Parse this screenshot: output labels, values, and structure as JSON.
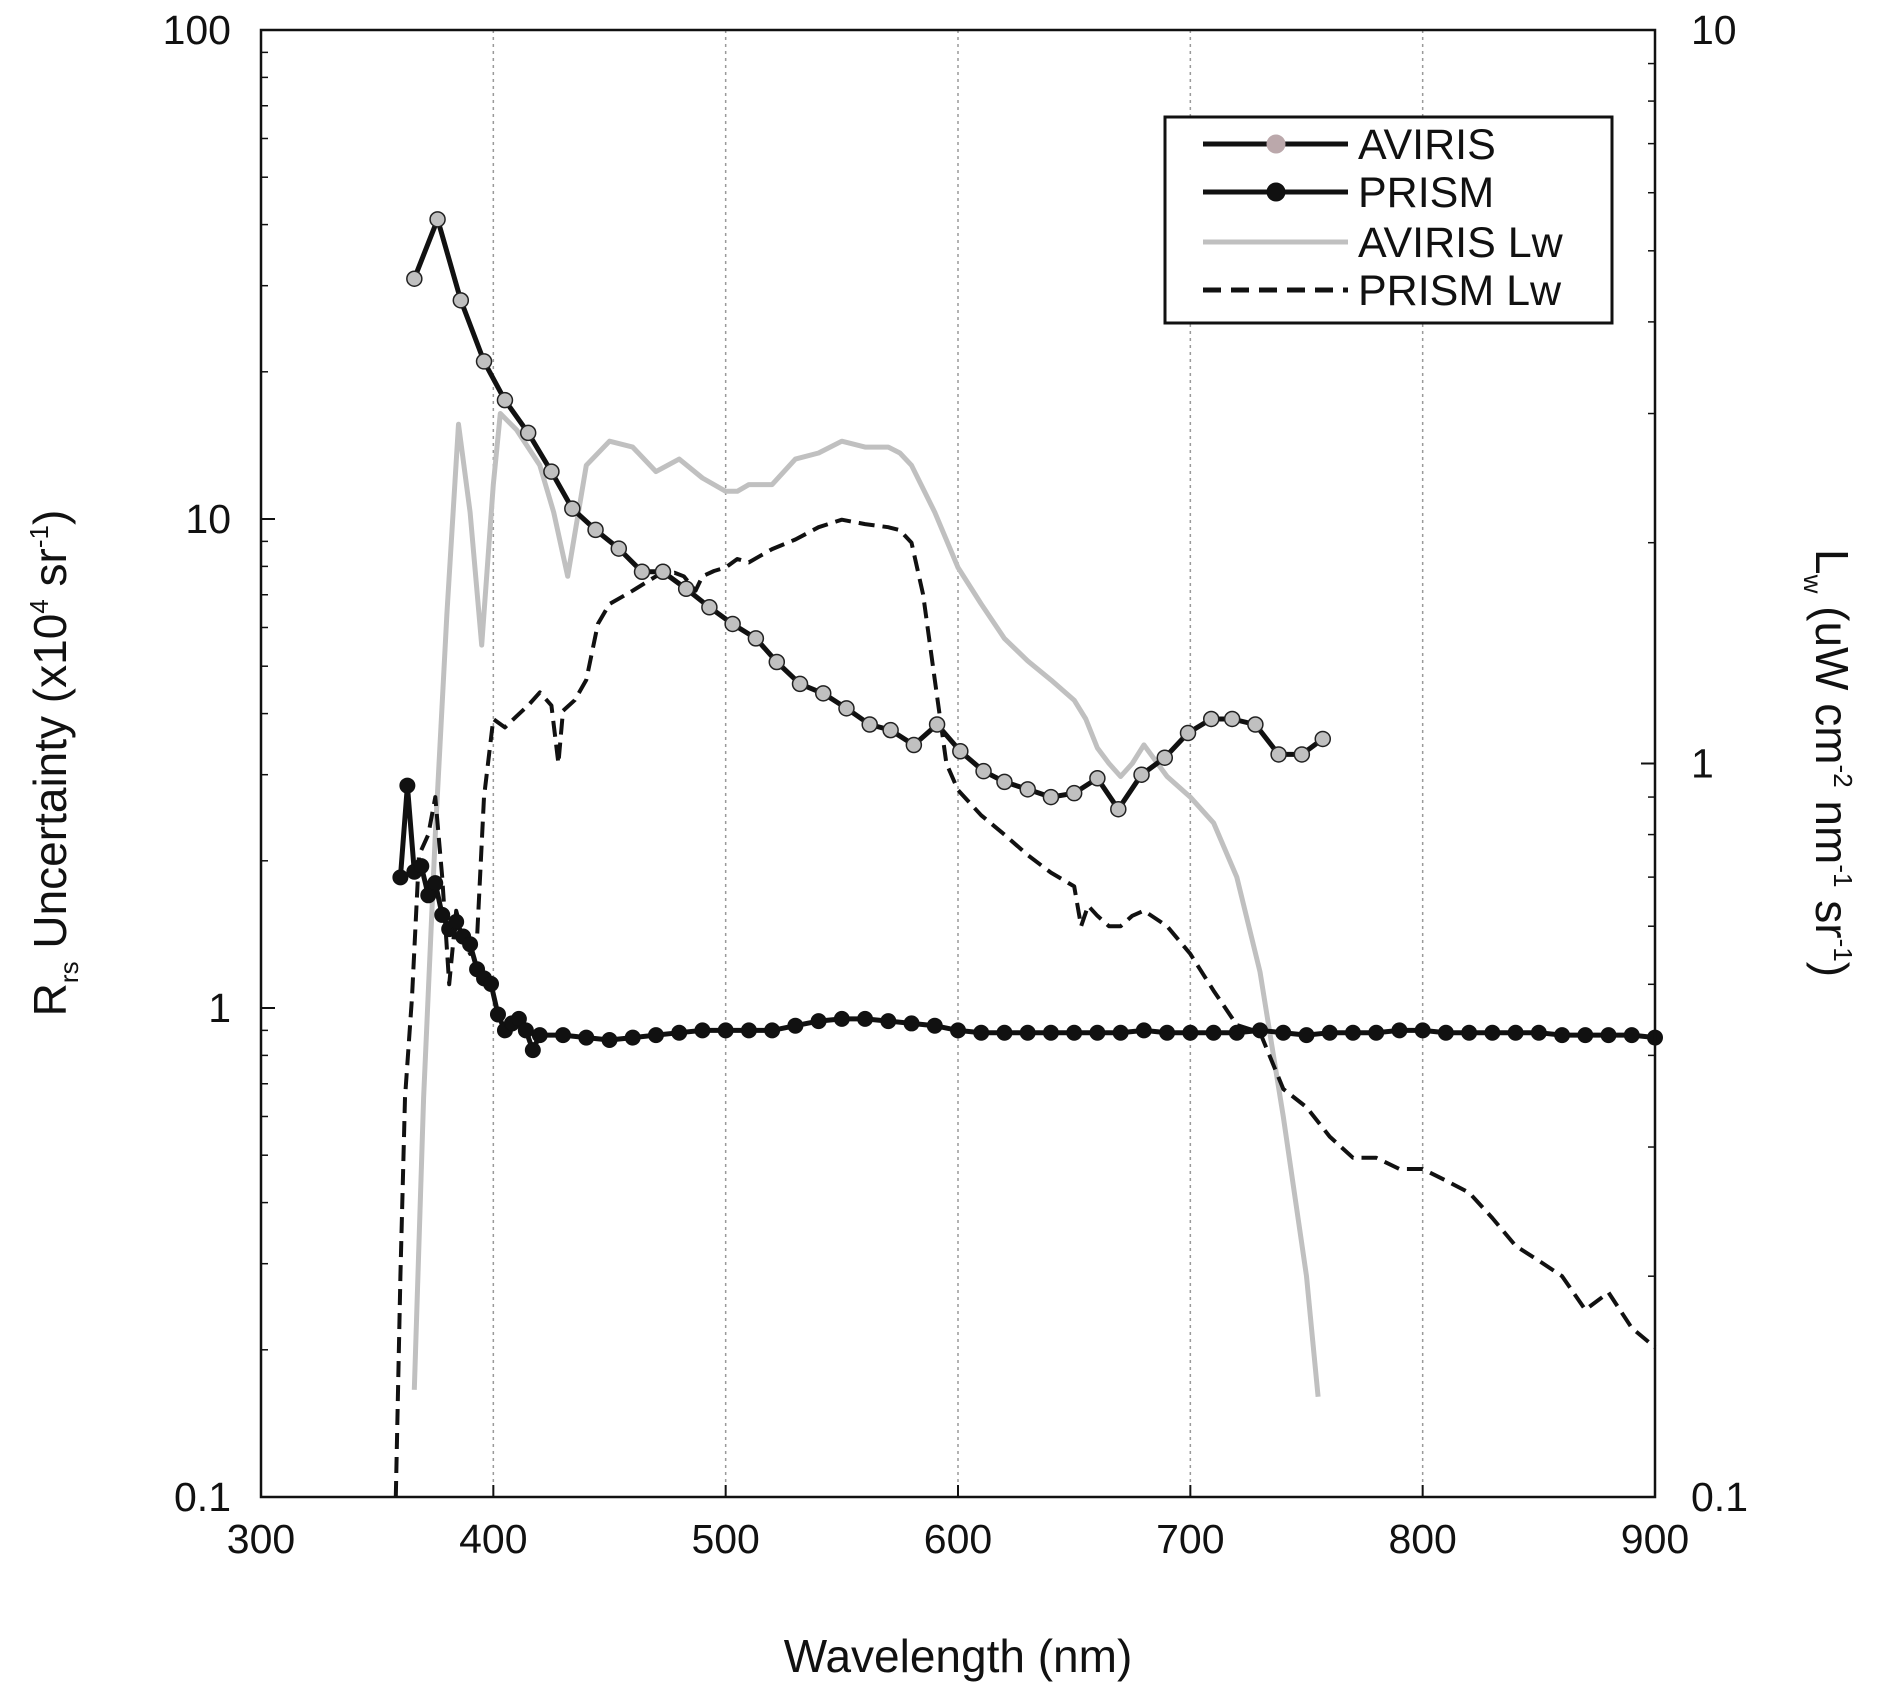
{
  "chart_data": {
    "type": "line",
    "title": "",
    "xlabel": "Wavelength (nm)",
    "ylabel_left": {
      "main": "R",
      "sub": "rs",
      "rest": " Uncertainty (x10",
      "exp1": "4",
      "mid": " sr",
      "exp2": "-1",
      "close": ")"
    },
    "ylabel_right": {
      "main": "L",
      "sub": "w",
      "rest": " (uW cm",
      "exp1": "-2",
      "mid1": " nm",
      "exp2": "-1",
      "mid2": " sr",
      "exp3": "-1",
      "close": ")"
    },
    "xlim": [
      300,
      900
    ],
    "ylim_left": [
      0.1,
      100
    ],
    "ylim_right": [
      0.1,
      10
    ],
    "yscale": "log",
    "grid": "vertical dotted at major x ticks",
    "legend_position": "top-right",
    "x_ticks": [
      "300",
      "400",
      "500",
      "600",
      "700",
      "800",
      "900"
    ],
    "y_left_ticks": [
      "0.1",
      "1",
      "10",
      "100"
    ],
    "y_right_ticks": [
      "0.1",
      "1",
      "10"
    ],
    "series": [
      {
        "name": "AVIRIS",
        "axis": "left",
        "style": "solid-black-line-gray-markers",
        "x": [
          366,
          376,
          386,
          396,
          405,
          415,
          425,
          434,
          444,
          454,
          464,
          473,
          483,
          493,
          503,
          513,
          522,
          532,
          542,
          552,
          562,
          571,
          581,
          591,
          601,
          611,
          620,
          630,
          640,
          650,
          660,
          669,
          679,
          689,
          699,
          709,
          718,
          728,
          738,
          748,
          757
        ],
        "y": [
          31,
          41,
          28,
          21,
          17.5,
          15,
          12.5,
          10.5,
          9.5,
          8.7,
          7.8,
          7.8,
          7.2,
          6.6,
          6.1,
          5.7,
          5.1,
          4.6,
          4.4,
          4.1,
          3.8,
          3.7,
          3.45,
          3.8,
          3.35,
          3.05,
          2.9,
          2.8,
          2.7,
          2.75,
          2.95,
          2.55,
          3.0,
          3.25,
          3.65,
          3.9,
          3.9,
          3.8,
          3.3,
          3.3,
          3.55
        ]
      },
      {
        "name": "PRISM",
        "axis": "left",
        "style": "solid-black-line-black-markers",
        "x": [
          360,
          363,
          366,
          369,
          372,
          375,
          378,
          381,
          384,
          387,
          390,
          393,
          396,
          399,
          402,
          405,
          408,
          411,
          414,
          417,
          420,
          430,
          440,
          450,
          460,
          470,
          480,
          490,
          500,
          510,
          520,
          530,
          540,
          550,
          560,
          570,
          580,
          590,
          600,
          610,
          620,
          630,
          640,
          650,
          660,
          670,
          680,
          690,
          700,
          710,
          720,
          730,
          740,
          750,
          760,
          770,
          780,
          790,
          800,
          810,
          820,
          830,
          840,
          850,
          860,
          870,
          880,
          890,
          900
        ],
        "y": [
          1.85,
          2.85,
          1.9,
          1.95,
          1.7,
          1.8,
          1.55,
          1.45,
          1.5,
          1.4,
          1.35,
          1.2,
          1.15,
          1.12,
          0.97,
          0.9,
          0.93,
          0.95,
          0.9,
          0.82,
          0.88,
          0.88,
          0.87,
          0.86,
          0.87,
          0.88,
          0.89,
          0.9,
          0.9,
          0.9,
          0.9,
          0.92,
          0.94,
          0.95,
          0.95,
          0.94,
          0.93,
          0.92,
          0.9,
          0.89,
          0.89,
          0.89,
          0.89,
          0.89,
          0.89,
          0.89,
          0.9,
          0.89,
          0.89,
          0.89,
          0.89,
          0.9,
          0.89,
          0.88,
          0.89,
          0.89,
          0.89,
          0.9,
          0.9,
          0.89,
          0.89,
          0.89,
          0.89,
          0.89,
          0.88,
          0.88,
          0.88,
          0.88,
          0.87
        ]
      },
      {
        "name": "AVIRIS Lw",
        "axis": "right",
        "style": "solid-gray",
        "x": [
          366,
          370,
          375,
          380,
          385,
          390,
          395,
          400,
          403,
          410,
          420,
          426,
          432,
          440,
          450,
          460,
          470,
          475,
          480,
          490,
          500,
          505,
          510,
          520,
          530,
          540,
          550,
          560,
          570,
          575,
          580,
          590,
          600,
          610,
          620,
          630,
          640,
          650,
          655,
          660,
          665,
          670,
          675,
          680,
          690,
          700,
          710,
          720,
          730,
          740,
          750,
          755
        ],
        "y": [
          0.14,
          0.35,
          0.8,
          1.6,
          2.9,
          2.2,
          1.45,
          2.4,
          3.0,
          2.85,
          2.55,
          2.2,
          1.8,
          2.55,
          2.75,
          2.7,
          2.5,
          2.55,
          2.6,
          2.45,
          2.35,
          2.35,
          2.4,
          2.4,
          2.6,
          2.65,
          2.75,
          2.7,
          2.7,
          2.65,
          2.55,
          2.2,
          1.85,
          1.65,
          1.48,
          1.38,
          1.3,
          1.22,
          1.15,
          1.05,
          1.0,
          0.96,
          1.0,
          1.06,
          0.96,
          0.9,
          0.83,
          0.7,
          0.52,
          0.33,
          0.2,
          0.137
        ]
      },
      {
        "name": "PRISM Lw",
        "axis": "right",
        "style": "dashed-black",
        "x": [
          358,
          360,
          362,
          365,
          368,
          372,
          375,
          378,
          381,
          384,
          387,
          390,
          393,
          396,
          400,
          405,
          410,
          415,
          420,
          425,
          428,
          430,
          435,
          440,
          445,
          450,
          460,
          470,
          478,
          482,
          487,
          490,
          495,
          500,
          505,
          510,
          515,
          520,
          530,
          540,
          550,
          560,
          570,
          575,
          580,
          585,
          590,
          595,
          600,
          610,
          620,
          630,
          640,
          650,
          653,
          656,
          660,
          665,
          670,
          675,
          680,
          690,
          700,
          710,
          720,
          730,
          740,
          750,
          760,
          770,
          780,
          790,
          800,
          810,
          820,
          830,
          840,
          850,
          860,
          870,
          880,
          890,
          900
        ],
        "y": [
          0.1,
          0.2,
          0.35,
          0.48,
          0.75,
          0.8,
          0.9,
          0.7,
          0.5,
          0.63,
          0.58,
          0.55,
          0.58,
          0.9,
          1.15,
          1.12,
          1.16,
          1.2,
          1.25,
          1.2,
          1.0,
          1.18,
          1.22,
          1.3,
          1.55,
          1.65,
          1.72,
          1.8,
          1.82,
          1.8,
          1.72,
          1.8,
          1.83,
          1.85,
          1.9,
          1.88,
          1.92,
          1.96,
          2.02,
          2.1,
          2.15,
          2.12,
          2.1,
          2.08,
          2.0,
          1.7,
          1.3,
          1.0,
          0.92,
          0.85,
          0.8,
          0.75,
          0.71,
          0.68,
          0.6,
          0.64,
          0.62,
          0.6,
          0.6,
          0.62,
          0.63,
          0.6,
          0.55,
          0.49,
          0.44,
          0.43,
          0.36,
          0.34,
          0.31,
          0.29,
          0.29,
          0.28,
          0.28,
          0.27,
          0.26,
          0.24,
          0.22,
          0.21,
          0.2,
          0.18,
          0.19,
          0.17,
          0.16
        ]
      }
    ],
    "colors": {
      "axis": "#111111",
      "grid": "#9a9a9a",
      "aviris_line": "#111111",
      "aviris_marker": "#c0c0c0",
      "prism_line": "#111111",
      "prism_marker": "#111111",
      "aviris_lw": "#c0c0c0",
      "prism_lw": "#111111"
    }
  }
}
